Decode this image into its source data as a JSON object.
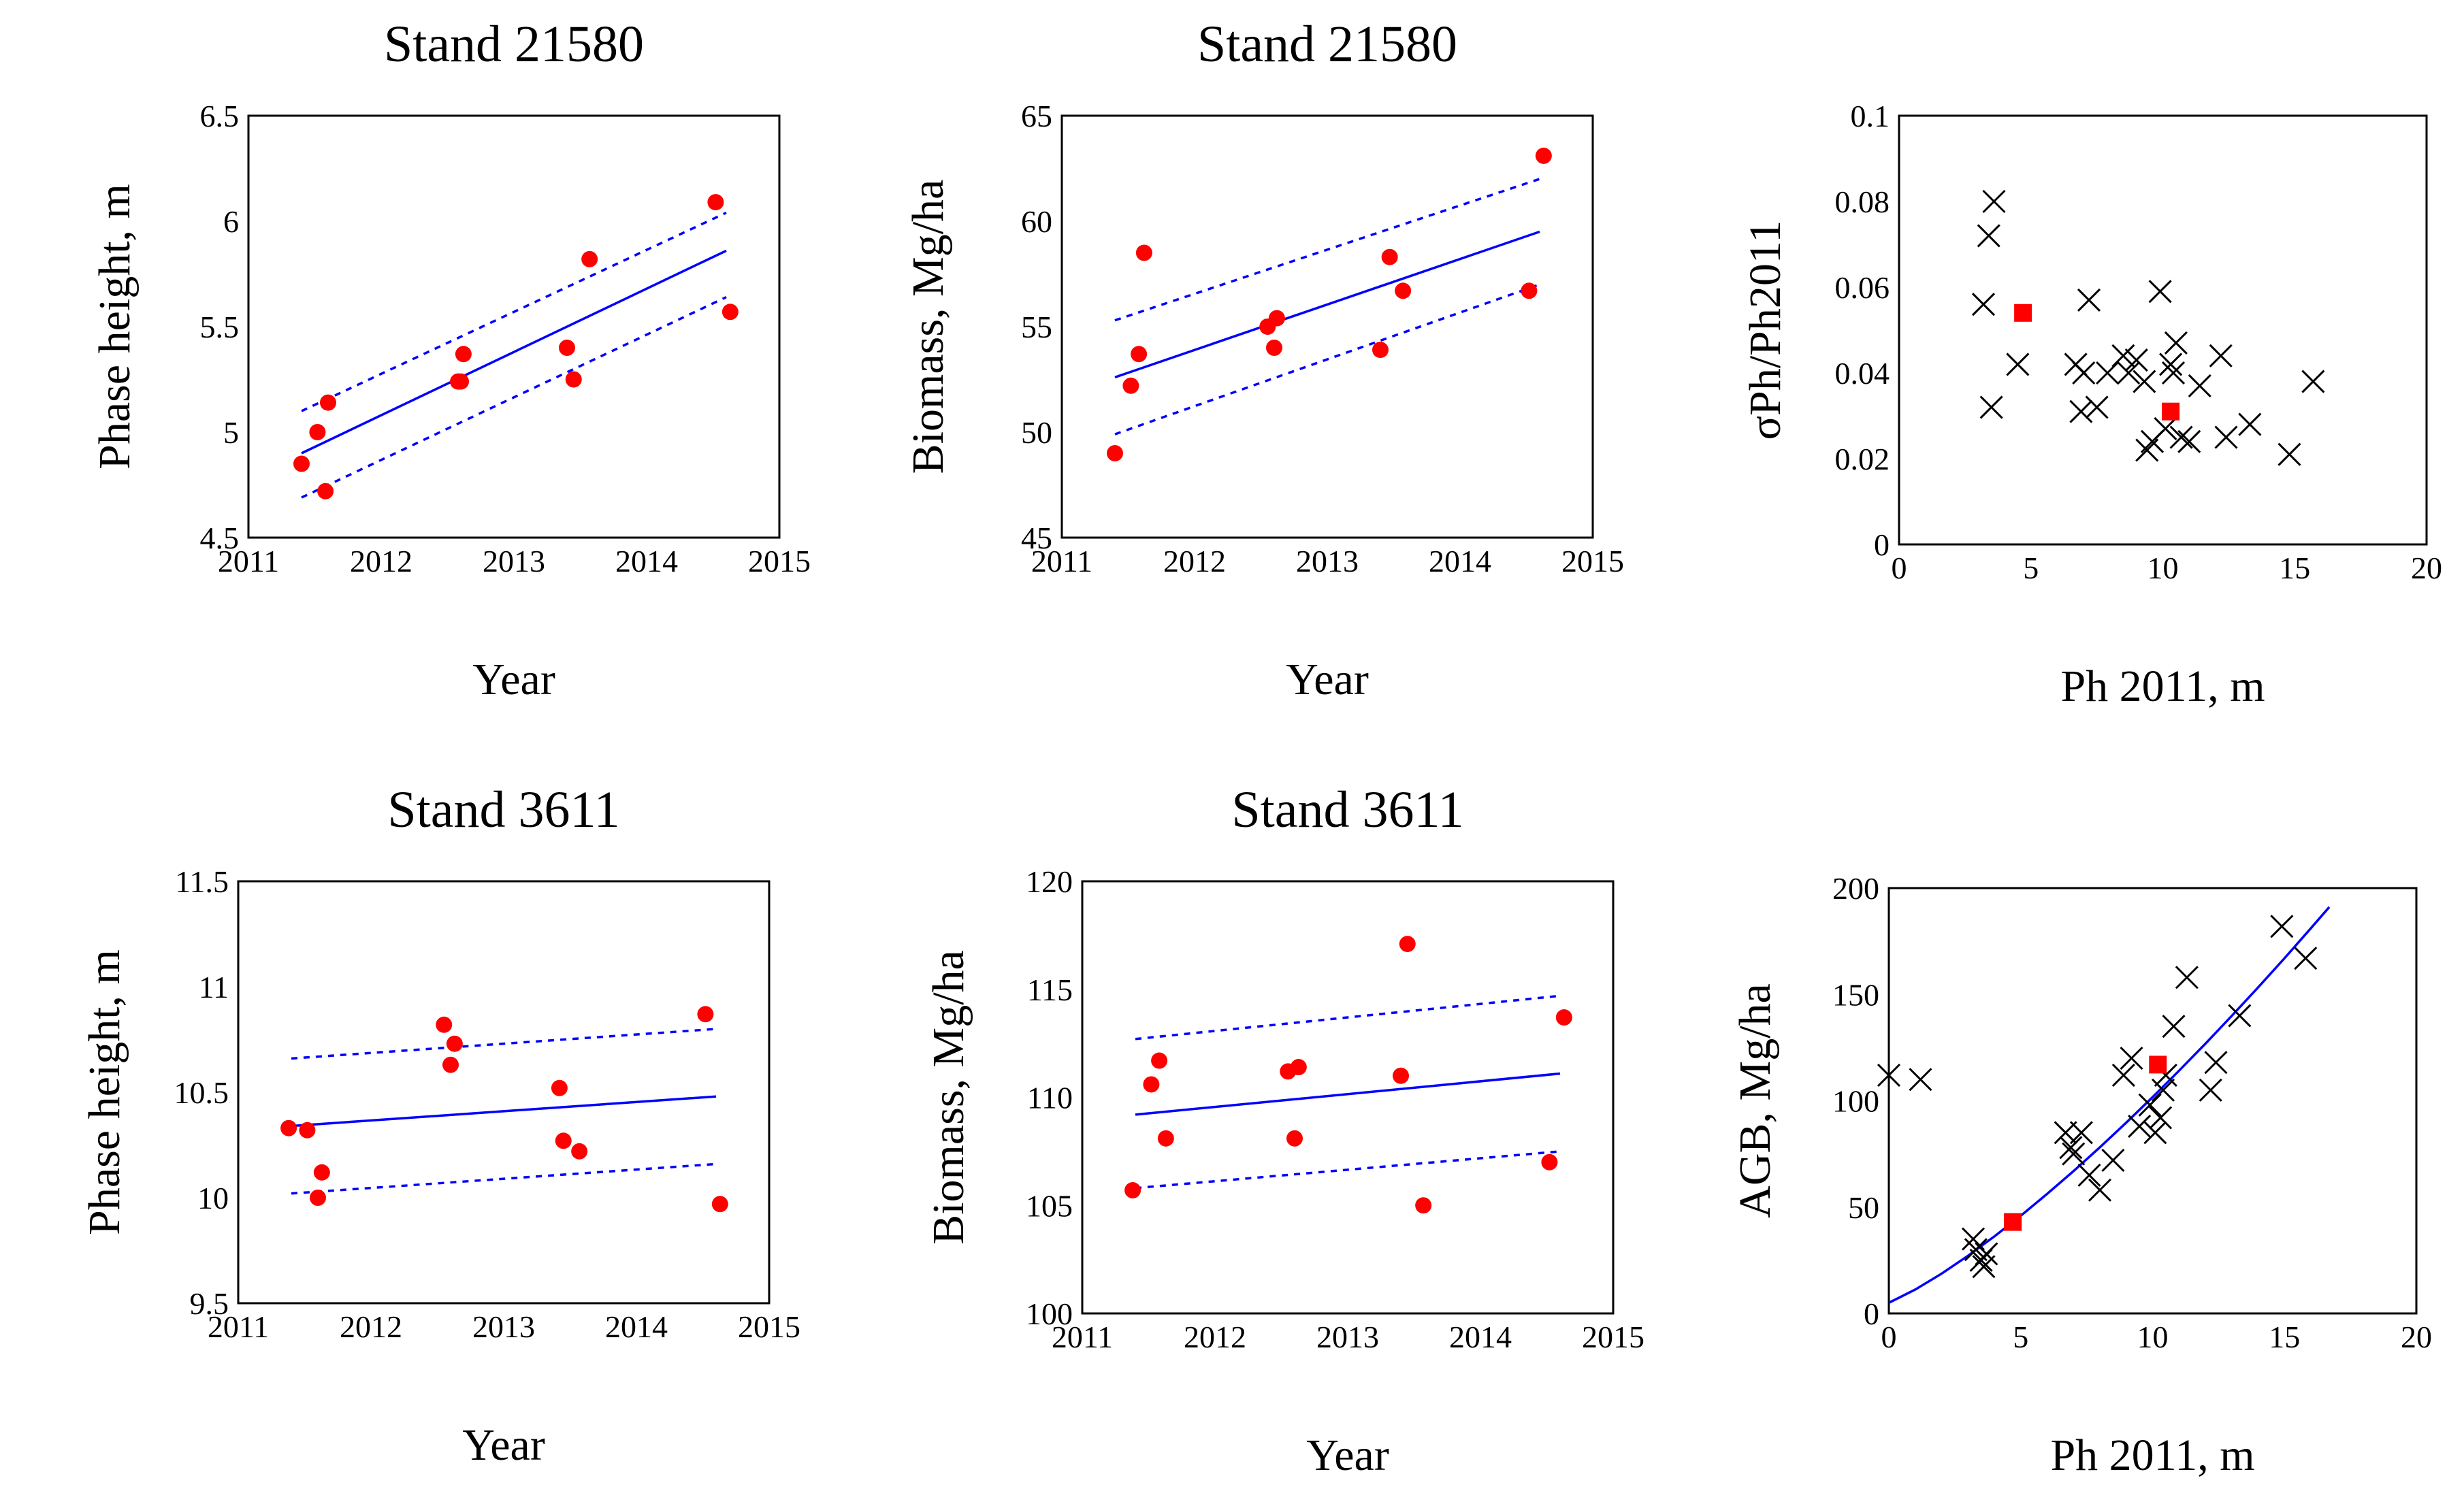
{
  "colors": {
    "points": "#ff0000",
    "fit": "#0000ff",
    "cross": "#000000",
    "axis": "#000000"
  },
  "chart_data": [
    {
      "type": "scatter",
      "title": "Stand 21580",
      "xlabel": "Year",
      "ylabel": "Phase height, m",
      "xlim": [
        2011,
        2015
      ],
      "ylim": [
        4.5,
        6.5
      ],
      "xticks": [
        "2011",
        "2012",
        "2013",
        "2014",
        "2015"
      ],
      "yticks": [
        "4.5",
        "5",
        "5.5",
        "6",
        "6.5"
      ],
      "points": [
        [
          2011.4,
          4.85
        ],
        [
          2011.52,
          5.0
        ],
        [
          2011.6,
          5.14
        ],
        [
          2011.58,
          4.72
        ],
        [
          2012.58,
          5.24
        ],
        [
          2012.62,
          5.37
        ],
        [
          2012.6,
          5.24
        ],
        [
          2013.4,
          5.4
        ],
        [
          2013.45,
          5.25
        ],
        [
          2013.57,
          5.82
        ],
        [
          2014.52,
          6.09
        ],
        [
          2014.63,
          5.57
        ]
      ],
      "fit": {
        "x": [
          2011.4,
          2014.6
        ],
        "y": [
          4.9,
          5.86
        ]
      },
      "band_upper": {
        "x": [
          2011.4,
          2014.6
        ],
        "y": [
          5.1,
          6.04
        ]
      },
      "band_lower": {
        "x": [
          2011.4,
          2014.6
        ],
        "y": [
          4.69,
          5.64
        ]
      }
    },
    {
      "type": "scatter",
      "title": "Stand 21580",
      "xlabel": "Year",
      "ylabel": "Biomass, Mg/ha",
      "xlim": [
        2011,
        2015
      ],
      "ylim": [
        45,
        65
      ],
      "xticks": [
        "2011",
        "2012",
        "2013",
        "2014",
        "2015"
      ],
      "yticks": [
        "45",
        "50",
        "55",
        "60",
        "65"
      ],
      "points": [
        [
          2011.4,
          49.0
        ],
        [
          2011.52,
          52.2
        ],
        [
          2011.58,
          53.7
        ],
        [
          2011.62,
          58.5
        ],
        [
          2012.55,
          55.0
        ],
        [
          2012.62,
          55.4
        ],
        [
          2012.6,
          54.0
        ],
        [
          2013.4,
          53.9
        ],
        [
          2013.47,
          58.3
        ],
        [
          2013.57,
          56.7
        ],
        [
          2014.52,
          56.7
        ],
        [
          2014.63,
          63.1
        ]
      ],
      "fit": {
        "x": [
          2011.4,
          2014.6
        ],
        "y": [
          52.6,
          59.5
        ]
      },
      "band_upper": {
        "x": [
          2011.4,
          2014.6
        ],
        "y": [
          55.3,
          62.0
        ]
      },
      "band_lower": {
        "x": [
          2011.4,
          2014.6
        ],
        "y": [
          49.9,
          57.0
        ]
      }
    },
    {
      "type": "scatter",
      "title": "",
      "xlabel": "Ph 2011, m",
      "ylabel": "σPh/Ph2011",
      "xlim": [
        0,
        20
      ],
      "ylim": [
        0,
        0.1
      ],
      "xticks": [
        "0",
        "5",
        "10",
        "15",
        "20"
      ],
      "yticks": [
        "0",
        "0.02",
        "0.04",
        "0.06",
        "0.08",
        "0.1"
      ],
      "crosses": [
        [
          3.2,
          0.056
        ],
        [
          3.4,
          0.072
        ],
        [
          3.5,
          0.032
        ],
        [
          3.6,
          0.08
        ],
        [
          4.5,
          0.042
        ],
        [
          6.7,
          0.042
        ],
        [
          6.9,
          0.031
        ],
        [
          7.0,
          0.04
        ],
        [
          7.2,
          0.057
        ],
        [
          7.5,
          0.032
        ],
        [
          7.9,
          0.04
        ],
        [
          8.5,
          0.044
        ],
        [
          8.7,
          0.04
        ],
        [
          9.0,
          0.043
        ],
        [
          9.3,
          0.038
        ],
        [
          9.4,
          0.022
        ],
        [
          9.6,
          0.024
        ],
        [
          9.9,
          0.059
        ],
        [
          10.1,
          0.027
        ],
        [
          10.3,
          0.042
        ],
        [
          10.4,
          0.04
        ],
        [
          10.5,
          0.047
        ],
        [
          10.7,
          0.025
        ],
        [
          11.0,
          0.024
        ],
        [
          11.4,
          0.037
        ],
        [
          12.2,
          0.044
        ],
        [
          12.4,
          0.025
        ],
        [
          13.3,
          0.028
        ],
        [
          14.8,
          0.021
        ],
        [
          15.7,
          0.038
        ]
      ],
      "red_points": [
        [
          4.7,
          0.054
        ],
        [
          10.3,
          0.031
        ]
      ]
    },
    {
      "type": "scatter",
      "title": "Stand 3611",
      "xlabel": "Year",
      "ylabel": "Phase height, m",
      "xlim": [
        2011,
        2015
      ],
      "ylim": [
        9.5,
        11.5
      ],
      "xticks": [
        "2011",
        "2012",
        "2013",
        "2014",
        "2015"
      ],
      "yticks": [
        "9.5",
        "10",
        "10.5",
        "11",
        "11.5"
      ],
      "points": [
        [
          2011.38,
          10.33
        ],
        [
          2011.52,
          10.32
        ],
        [
          2011.6,
          10.0
        ],
        [
          2011.63,
          10.12
        ],
        [
          2012.55,
          10.82
        ],
        [
          2012.6,
          10.63
        ],
        [
          2012.63,
          10.73
        ],
        [
          2013.42,
          10.52
        ],
        [
          2013.45,
          10.27
        ],
        [
          2013.57,
          10.22
        ],
        [
          2014.52,
          10.87
        ],
        [
          2014.63,
          9.97
        ]
      ],
      "fit": {
        "x": [
          2011.4,
          2014.6
        ],
        "y": [
          10.34,
          10.48
        ]
      },
      "band_upper": {
        "x": [
          2011.4,
          2014.6
        ],
        "y": [
          10.66,
          10.8
        ]
      },
      "band_lower": {
        "x": [
          2011.4,
          2014.6
        ],
        "y": [
          10.02,
          10.16
        ]
      }
    },
    {
      "type": "scatter",
      "title": "Stand 3611",
      "xlabel": "Year",
      "ylabel": "Biomass, Mg/ha",
      "xlim": [
        2011,
        2015
      ],
      "ylim": [
        100,
        120
      ],
      "xticks": [
        "2011",
        "2012",
        "2013",
        "2014",
        "2015"
      ],
      "yticks": [
        "100",
        "105",
        "110",
        "115",
        "120"
      ],
      "points": [
        [
          2011.38,
          105.7
        ],
        [
          2011.52,
          110.6
        ],
        [
          2011.58,
          111.7
        ],
        [
          2011.63,
          108.1
        ],
        [
          2012.55,
          111.2
        ],
        [
          2012.6,
          108.1
        ],
        [
          2012.63,
          111.4
        ],
        [
          2013.4,
          111.0
        ],
        [
          2013.45,
          117.1
        ],
        [
          2013.57,
          105.0
        ],
        [
          2014.52,
          107.0
        ],
        [
          2014.63,
          113.7
        ]
      ],
      "fit": {
        "x": [
          2011.4,
          2014.6
        ],
        "y": [
          109.2,
          111.1
        ]
      },
      "band_upper": {
        "x": [
          2011.4,
          2014.6
        ],
        "y": [
          112.7,
          114.7
        ]
      },
      "band_lower": {
        "x": [
          2011.4,
          2014.6
        ],
        "y": [
          105.8,
          107.5
        ]
      }
    },
    {
      "type": "scatter",
      "title": "",
      "xlabel": "Ph 2011, m",
      "ylabel": "AGB, Mg/ha",
      "xlim": [
        0,
        20
      ],
      "ylim": [
        0,
        200
      ],
      "xticks": [
        "0",
        "5",
        "10",
        "15",
        "20"
      ],
      "yticks": [
        "0",
        "50",
        "100",
        "150",
        "200"
      ],
      "crosses": [
        [
          0.0,
          112
        ],
        [
          1.2,
          110
        ],
        [
          3.2,
          35
        ],
        [
          3.3,
          30
        ],
        [
          3.5,
          25
        ],
        [
          3.6,
          22
        ],
        [
          3.7,
          28
        ],
        [
          6.7,
          85
        ],
        [
          6.9,
          78
        ],
        [
          7.0,
          75
        ],
        [
          7.3,
          85
        ],
        [
          7.6,
          65
        ],
        [
          8.0,
          58
        ],
        [
          8.5,
          72
        ],
        [
          8.9,
          112
        ],
        [
          9.2,
          120
        ],
        [
          9.5,
          88
        ],
        [
          9.9,
          98
        ],
        [
          10.1,
          85
        ],
        [
          10.3,
          92
        ],
        [
          10.4,
          105
        ],
        [
          10.5,
          112
        ],
        [
          10.8,
          135
        ],
        [
          11.3,
          158
        ],
        [
          12.2,
          105
        ],
        [
          12.4,
          118
        ],
        [
          13.3,
          140
        ],
        [
          14.9,
          182
        ],
        [
          15.8,
          167
        ]
      ],
      "red_points": [
        [
          4.7,
          43
        ],
        [
          10.2,
          117
        ]
      ],
      "fit": {
        "x": [
          0,
          1,
          2,
          3,
          4,
          5,
          6,
          7,
          8,
          9,
          10,
          11,
          12,
          13,
          14,
          15,
          16,
          16.7
        ],
        "y": [
          5,
          11.2,
          18.7,
          27.1,
          36.2,
          45.9,
          56.2,
          66.9,
          78.1,
          89.7,
          101.7,
          114.1,
          126.8,
          139.9,
          153.3,
          167.0,
          181.1,
          191.1
        ]
      }
    }
  ]
}
